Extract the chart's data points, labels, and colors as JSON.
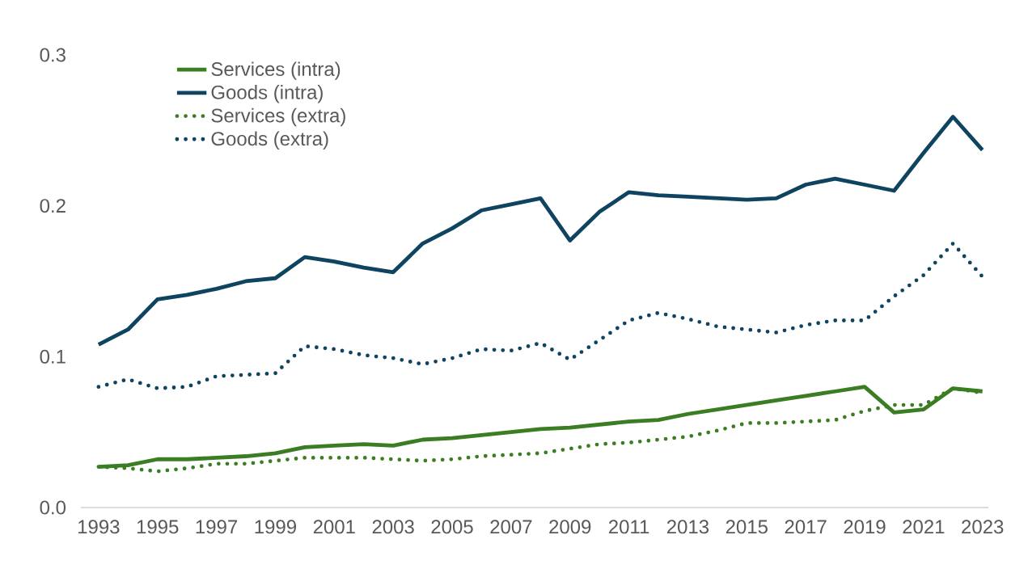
{
  "chart_data": {
    "type": "line",
    "x": [
      1993,
      1994,
      1995,
      1996,
      1997,
      1998,
      1999,
      2000,
      2001,
      2002,
      2003,
      2004,
      2005,
      2006,
      2007,
      2008,
      2009,
      2010,
      2011,
      2012,
      2013,
      2014,
      2015,
      2016,
      2017,
      2018,
      2019,
      2020,
      2021,
      2022,
      2023
    ],
    "series": [
      {
        "name": "Services (intra)",
        "color": "#3a7d22",
        "line_style": "solid",
        "values": [
          0.027,
          0.028,
          0.032,
          0.032,
          0.033,
          0.034,
          0.036,
          0.04,
          0.041,
          0.042,
          0.041,
          0.045,
          0.046,
          0.048,
          0.05,
          0.052,
          0.053,
          0.055,
          0.057,
          0.058,
          0.062,
          0.065,
          0.068,
          0.071,
          0.074,
          0.077,
          0.08,
          0.063,
          0.065,
          0.079,
          0.077
        ]
      },
      {
        "name": "Goods (intra)",
        "color": "#0e4460",
        "line_style": "solid",
        "values": [
          0.108,
          0.118,
          0.138,
          0.141,
          0.145,
          0.15,
          0.152,
          0.166,
          0.163,
          0.159,
          0.156,
          0.175,
          0.185,
          0.197,
          0.201,
          0.205,
          0.177,
          0.196,
          0.209,
          0.207,
          0.206,
          0.205,
          0.204,
          0.205,
          0.214,
          0.218,
          0.214,
          0.21,
          0.235,
          0.259,
          0.237
        ]
      },
      {
        "name": "Services (extra)",
        "color": "#3a7d22",
        "line_style": "dotted",
        "values": [
          0.027,
          0.026,
          0.024,
          0.026,
          0.029,
          0.029,
          0.031,
          0.033,
          0.033,
          0.033,
          0.032,
          0.031,
          0.032,
          0.034,
          0.035,
          0.036,
          0.039,
          0.042,
          0.043,
          0.045,
          0.047,
          0.051,
          0.056,
          0.056,
          0.057,
          0.058,
          0.064,
          0.068,
          0.068,
          0.079,
          0.076
        ]
      },
      {
        "name": "Goods (extra)",
        "color": "#0e4460",
        "line_style": "dotted",
        "values": [
          0.08,
          0.085,
          0.079,
          0.08,
          0.087,
          0.088,
          0.089,
          0.107,
          0.105,
          0.101,
          0.099,
          0.095,
          0.099,
          0.105,
          0.104,
          0.109,
          0.098,
          0.111,
          0.124,
          0.129,
          0.125,
          0.12,
          0.118,
          0.116,
          0.121,
          0.124,
          0.124,
          0.14,
          0.154,
          0.175,
          0.153
        ]
      }
    ],
    "xlim": [
      1992.4,
      2023.2
    ],
    "xticks": [
      1993,
      1995,
      1997,
      1999,
      2001,
      2003,
      2005,
      2007,
      2009,
      2011,
      2013,
      2015,
      2017,
      2019,
      2021,
      2023
    ],
    "ylim": [
      0,
      0.3
    ],
    "yticks": [
      {
        "value": 0,
        "label": "0.0"
      },
      {
        "value": 0.1,
        "label": "0.1"
      },
      {
        "value": 0.2,
        "label": "0.2"
      },
      {
        "value": 0.3,
        "label": "0.3"
      }
    ],
    "grid": false,
    "legend": "top left"
  }
}
